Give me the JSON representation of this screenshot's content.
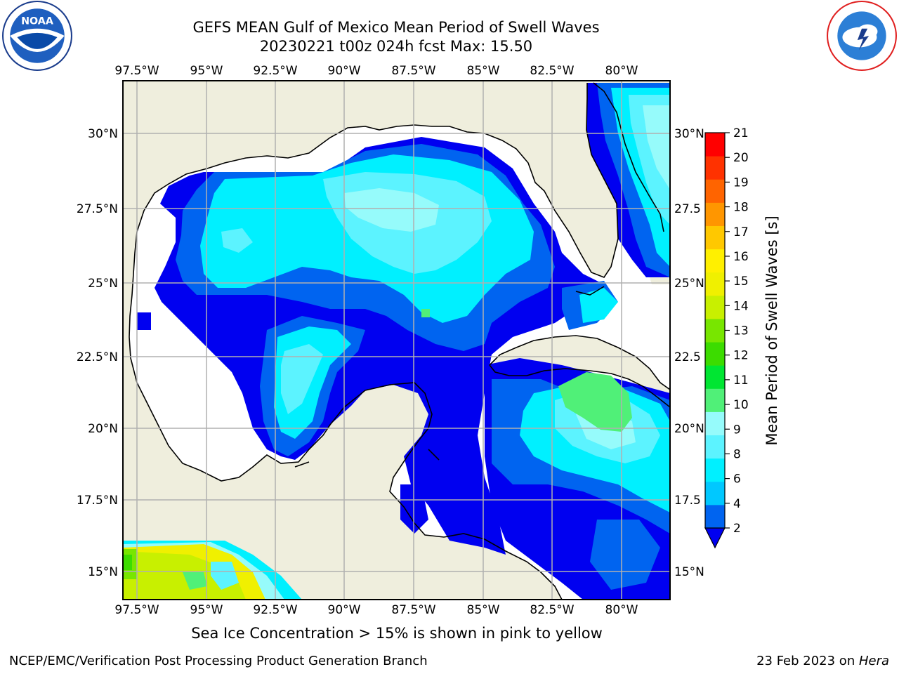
{
  "title": {
    "line1": "GEFS MEAN Gulf of Mexico Mean Period of Swell Waves",
    "line2": "20230221 t00z 024h fcst   Max: 15.50"
  },
  "map": {
    "lon_ticks": [
      "97.5°W",
      "95°W",
      "92.5°W",
      "90°W",
      "87.5°W",
      "85°W",
      "82.5°W",
      "80°W"
    ],
    "lat_ticks_left": [
      "30°N",
      "27.5°N",
      "25°N",
      "22.5°N",
      "20°N",
      "17.5°N",
      "15°N"
    ],
    "lat_ticks_right": [
      "30°N",
      "27.5",
      "25°N",
      "22.5",
      "20°N",
      "17.5",
      "15°N"
    ],
    "land_color": "#efeedd",
    "ocean_color": "#ffffff",
    "grid_color": "#b0b0b0"
  },
  "colorbar": {
    "label": "Mean Period of Swell Waves [s]",
    "ticks": [
      "2",
      "4",
      "6",
      "8",
      "9",
      "10",
      "11",
      "12",
      "13",
      "14",
      "15",
      "16",
      "17",
      "18",
      "19",
      "20",
      "21"
    ],
    "colors": [
      "#0000f0",
      "#0064f0",
      "#00c8ff",
      "#00f0ff",
      "#5cf3ff",
      "#96fbfb",
      "#50f078",
      "#00e632",
      "#3cdc00",
      "#78e600",
      "#c8f000",
      "#f0f000",
      "#fff000",
      "#ffc800",
      "#ff9600",
      "#ff6400",
      "#ff3200",
      "#ff0000"
    ]
  },
  "ice_note": "Sea Ice Concentration > 15% is shown in pink to yellow",
  "footer": {
    "credit": "NCEP/EMC/Verification Post Processing Product Generation Branch",
    "date_prefix": "23 Feb 2023 on ",
    "machine": "Hera"
  },
  "logos": {
    "left": "noaa-logo",
    "right": "nws-logo"
  }
}
